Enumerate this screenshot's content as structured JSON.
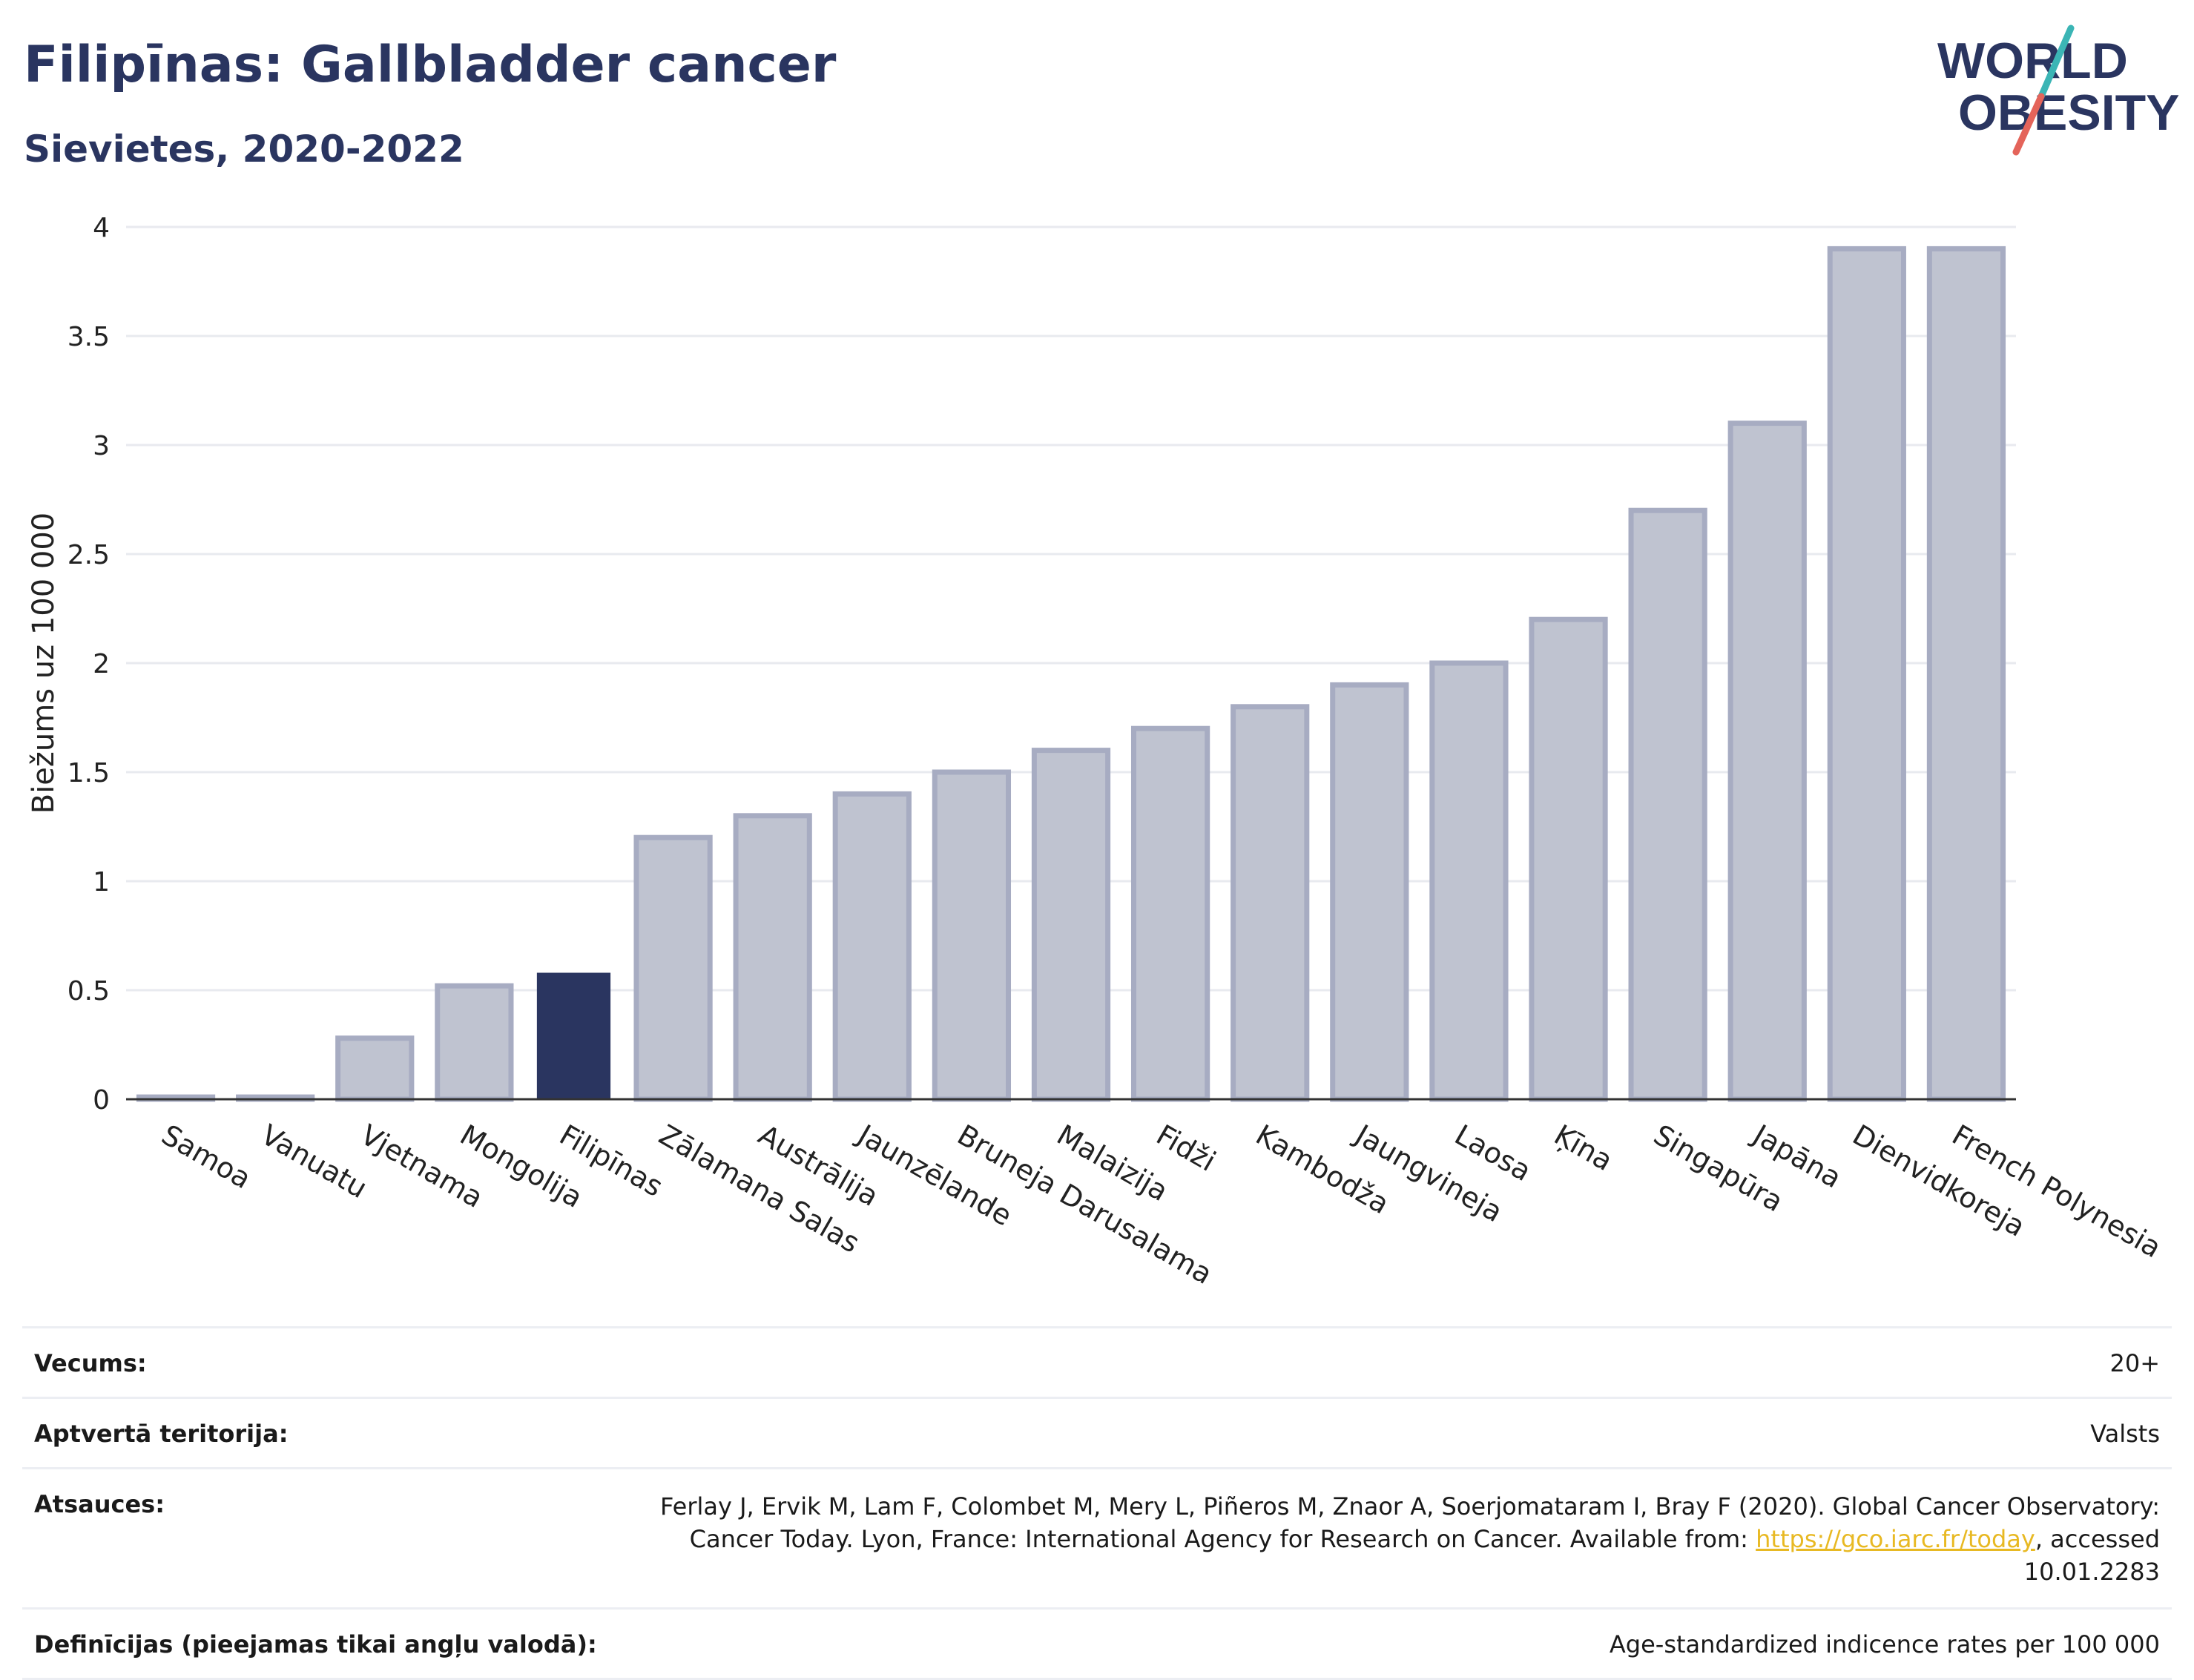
{
  "header": {
    "title": "Filipīnas: Gallbladder cancer",
    "subtitle": "Sievietes, 2020-2022"
  },
  "logo": {
    "line1": "WORLD",
    "line2": "OBESITY",
    "colors": {
      "text": "#2a3560",
      "slash_teal": "#3bb5b5",
      "slash_red": "#e4645a"
    }
  },
  "chart_data": {
    "type": "bar",
    "ylabel": "Biežums uz 100 000",
    "xlabel": "",
    "ylim": [
      0,
      4
    ],
    "yticks": [
      0,
      0.5,
      1,
      1.5,
      2,
      2.5,
      3,
      3.5,
      4
    ],
    "ytick_labels": [
      "0",
      "0.5",
      "1",
      "1.5",
      "2",
      "2.5",
      "3",
      "3.5",
      "4"
    ],
    "grid": true,
    "categories": [
      "Samoa",
      "Vanuatu",
      "Vjetnama",
      "Mongolija",
      "Filipīnas",
      "Zālamana Salas",
      "Austrālija",
      "Jaunzēlande",
      "Bruneja Darusalama",
      "Malaizija",
      "Fidži",
      "Kambodža",
      "Jaungvineja",
      "Laosa",
      "Ķīna",
      "Singapūra",
      "Japāna",
      "Dienvidkoreja",
      "French Polynesia"
    ],
    "values": [
      0.01,
      0.01,
      0.28,
      0.52,
      0.58,
      1.2,
      1.3,
      1.4,
      1.5,
      1.6,
      1.7,
      1.8,
      1.9,
      2.0,
      2.2,
      2.7,
      3.1,
      3.9,
      3.9
    ],
    "highlight": "Filipīnas",
    "colors": {
      "bar": "#bfc3d0",
      "bar_edge": "#a7acc2",
      "highlight": "#2a3560",
      "grid": "#e8eaef",
      "axis": "#333333"
    }
  },
  "meta": {
    "rows": [
      {
        "label": "Vecums:",
        "value": "20+"
      },
      {
        "label": "Aptvertā teritorija:",
        "value": "Valsts"
      },
      {
        "label": "Atsauces:",
        "value_pre": "Ferlay J, Ervik M, Lam F, Colombet M, Mery L, Piñeros M, Znaor A, Soerjomataram I, Bray F (2020). Global Cancer Observatory: Cancer Today. Lyon, France: International Agency for Research on Cancer. Available from: ",
        "link": "https://gco.iarc.fr/today",
        "value_post": ", accessed 10.01.2283"
      },
      {
        "label": "Definīcijas (pieejamas tikai angļu valodā):",
        "value": "Age-standardized indicence rates per 100 000"
      }
    ]
  }
}
